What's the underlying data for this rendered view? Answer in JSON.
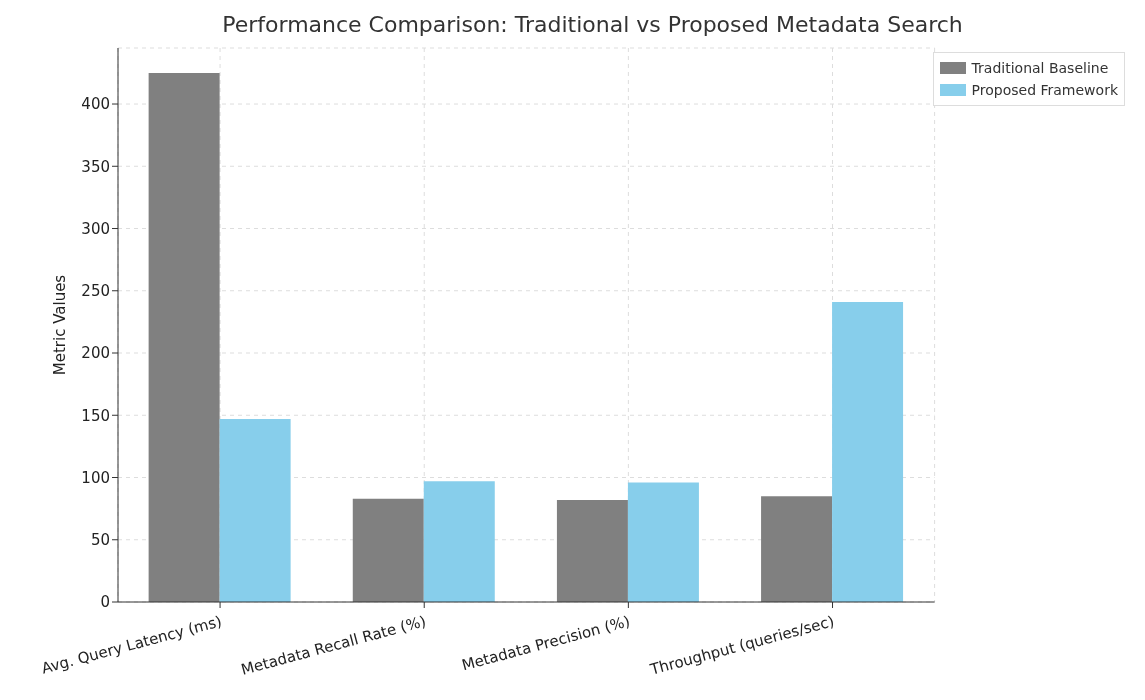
{
  "chart_data": {
    "type": "bar",
    "title": "Performance Comparison: Traditional vs Proposed Metadata Search",
    "ylabel": "Metric Values",
    "categories": [
      "Avg. Query Latency (ms)",
      "Metadata Recall Rate (%)",
      "Metadata Precision (%)",
      "Throughput (queries/sec)"
    ],
    "series": [
      {
        "name": "Traditional Baseline",
        "color": "#808080",
        "values": [
          425,
          83,
          82,
          85
        ]
      },
      {
        "name": "Proposed Framework",
        "color": "#87ceeb",
        "values": [
          147,
          97,
          96,
          241
        ]
      }
    ],
    "ylim": [
      0,
      445
    ],
    "yticks": [
      0,
      50,
      100,
      150,
      200,
      250,
      300,
      350,
      400
    ],
    "grid": true,
    "legend": "top right"
  }
}
